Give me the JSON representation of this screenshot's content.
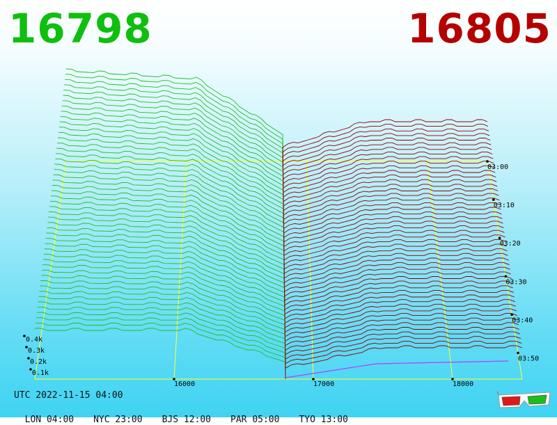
{
  "header": {
    "bid_price": "16798",
    "ask_price": "16805",
    "bid_color": "#0fbf0f",
    "ask_color": "#b50000"
  },
  "footer": {
    "utc_label": "UTC 2022-11-15 04:00",
    "zones": [
      {
        "label": "LON 04:00"
      },
      {
        "label": "NYC 23:00"
      },
      {
        "label": "BJS 12:00"
      },
      {
        "label": "PAR 05:00"
      },
      {
        "label": "TYO 13:00"
      }
    ]
  },
  "chart_data": {
    "type": "area",
    "price_ticks": [
      "16000",
      "17000",
      "18000"
    ],
    "volume_ticks": [
      "0.1k",
      "0.2k",
      "0.3k",
      "0.4k"
    ],
    "time_ticks": [
      "03:00",
      "03:10",
      "03:20",
      "03:30",
      "03:40",
      "03:50"
    ],
    "mid_price": 16800,
    "price_range": [
      15000,
      18500
    ],
    "bid_color": "#1fbf1f",
    "ask_color": "#8e0000",
    "grid_color": "#ffff33"
  }
}
